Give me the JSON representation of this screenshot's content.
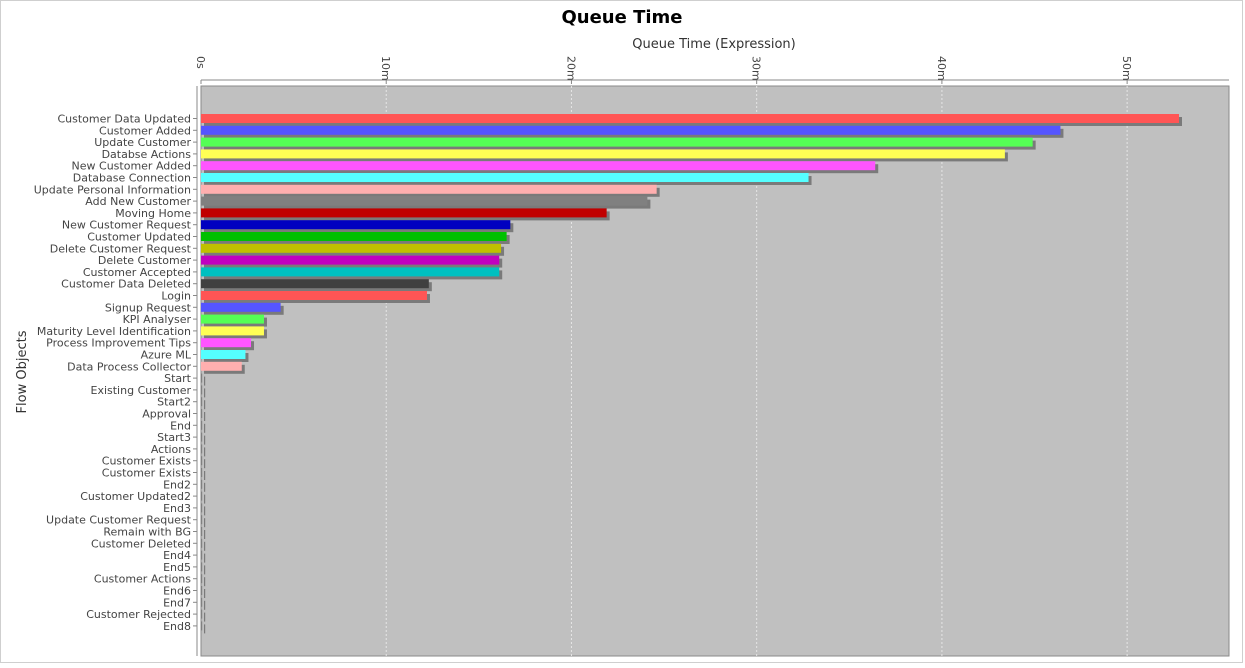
{
  "chart_data": {
    "type": "bar",
    "orientation": "horizontal",
    "title": "Queue Time",
    "xlabel": "Queue Time (Expression)",
    "ylabel": "Flow Objects",
    "x_axis_position": "top",
    "xlim": [
      0,
      55.5
    ],
    "x_ticks": [
      {
        "value": 0,
        "label": "0s"
      },
      {
        "value": 10,
        "label": "10m"
      },
      {
        "value": 20,
        "label": "20m"
      },
      {
        "value": 30,
        "label": "30m"
      },
      {
        "value": 40,
        "label": "40m"
      },
      {
        "value": 50,
        "label": "50m"
      }
    ],
    "grid": true,
    "plot_background": "#c0c0c0",
    "categories": [
      "Customer Data Updated",
      "Customer Added",
      "Update Customer",
      "Databse Actions",
      "New Customer Added",
      "Database Connection",
      "Update Personal Information",
      "Add New Customer",
      "Moving Home",
      "New Customer Request",
      "Customer Updated",
      "Delete Customer Request",
      "Delete Customer",
      "Customer Accepted",
      "Customer Data Deleted",
      "Login",
      "Signup Request",
      "KPI Analyser",
      "Maturity Level Identification",
      "Process Improvement Tips",
      "Azure ML",
      "Data Process Collector",
      "Start",
      "Existing Customer",
      "Start2",
      "Approval",
      "End",
      "Start3",
      "Actions",
      "Customer Exists",
      "Customer Exists",
      "End2",
      "Customer Updated2",
      "End3",
      "Update Customer Request",
      "Remain with BG",
      "Customer Deleted",
      "End4",
      "End5",
      "Customer Actions",
      "End6",
      "End7",
      "Customer Rejected",
      "End8"
    ],
    "values": [
      52.8,
      46.4,
      44.9,
      43.4,
      36.4,
      32.8,
      24.6,
      24.1,
      21.9,
      16.7,
      16.5,
      16.2,
      16.1,
      16.1,
      12.3,
      12.2,
      4.3,
      3.4,
      3.4,
      2.7,
      2.4,
      2.2,
      0.05,
      0.05,
      0.05,
      0.05,
      0.05,
      0.05,
      0.05,
      0.05,
      0.05,
      0.05,
      0.05,
      0.05,
      0.05,
      0.05,
      0.05,
      0.05,
      0.05,
      0.05,
      0.05,
      0.05,
      0.05,
      0.05
    ],
    "colors": [
      "#ff5555",
      "#5555ff",
      "#55ff55",
      "#ffff55",
      "#ff55ff",
      "#55ffff",
      "#ffafaf",
      "#808080",
      "#c00000",
      "#0000c0",
      "#00c000",
      "#c0c000",
      "#c000c0",
      "#00c0c0",
      "#404040",
      "#ff5555",
      "#5555ff",
      "#55ff55",
      "#ffff55",
      "#ff55ff",
      "#55ffff",
      "#ffafaf",
      "#808080",
      "#808080",
      "#808080",
      "#808080",
      "#808080",
      "#808080",
      "#808080",
      "#808080",
      "#808080",
      "#808080",
      "#808080",
      "#808080",
      "#808080",
      "#808080",
      "#808080",
      "#808080",
      "#808080",
      "#808080",
      "#808080",
      "#808080",
      "#808080",
      "#808080"
    ]
  }
}
